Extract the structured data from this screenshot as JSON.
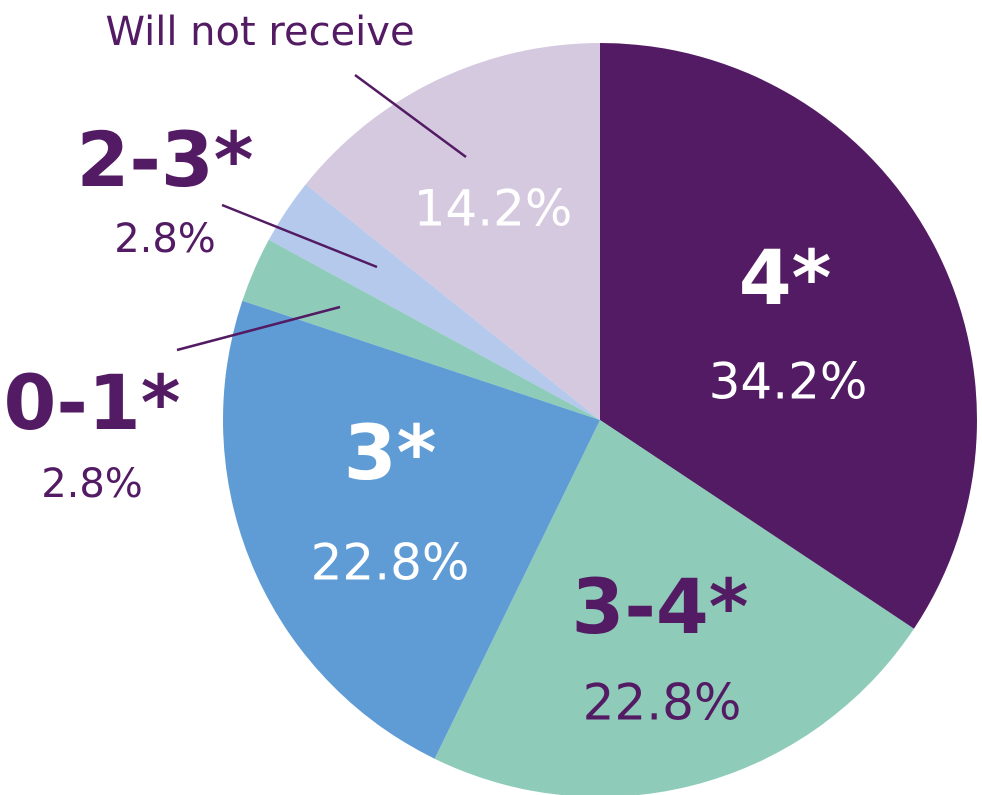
{
  "chart_data": {
    "type": "pie",
    "categories": [
      "4*",
      "3-4*",
      "3*",
      "0-1*",
      "2-3*",
      "Will not receive"
    ],
    "values": [
      34.2,
      22.8,
      22.8,
      2.8,
      2.8,
      14.2
    ],
    "value_labels": [
      "34.2%",
      "22.8%",
      "22.8%",
      "2.8%",
      "2.8%",
      "14.2%"
    ],
    "colors": [
      "#531b63",
      "#8fcbb9",
      "#5f9cd6",
      "#8fcbb9",
      "#b4c9ec",
      "#d5c9e0"
    ]
  }
}
